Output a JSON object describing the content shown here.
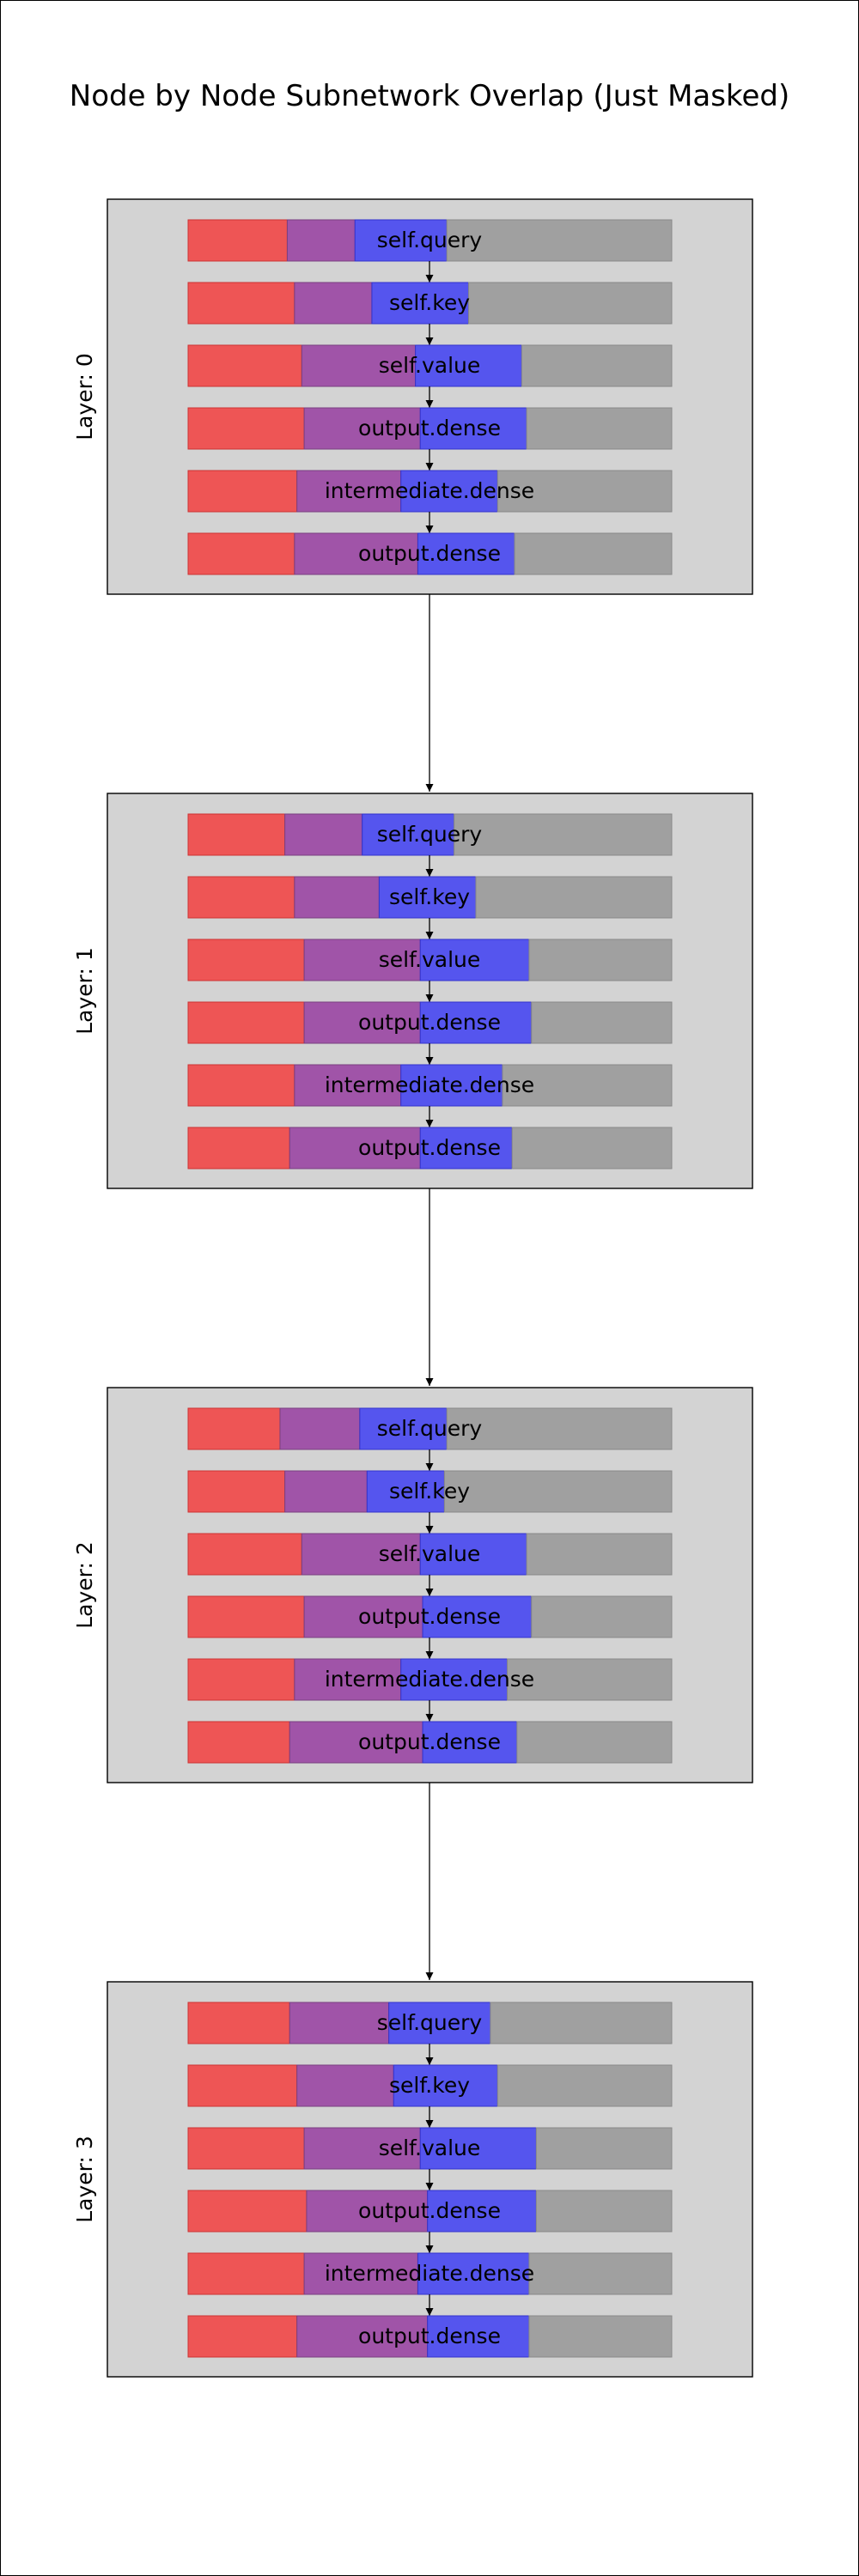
{
  "title": "Node by Node Subnetwork Overlap (Just Masked)",
  "colors": {
    "red_only": "#ee5555",
    "overlap": "#a054a8",
    "blue_only": "#5555ee",
    "unused": "#a0a0a0",
    "layer_background": "#d3d3d3"
  },
  "layers": [
    {
      "label": "Layer: 0",
      "modules": [
        {
          "name": "self.query",
          "segments": [
            0.205,
            0.14,
            0.19,
            0.465
          ]
        },
        {
          "name": "self.key",
          "segments": [
            0.22,
            0.16,
            0.2,
            0.42
          ]
        },
        {
          "name": "self.value",
          "segments": [
            0.235,
            0.235,
            0.22,
            0.31
          ]
        },
        {
          "name": "output.dense",
          "segments": [
            0.24,
            0.24,
            0.22,
            0.3
          ]
        },
        {
          "name": "intermediate.dense",
          "segments": [
            0.225,
            0.215,
            0.2,
            0.36
          ]
        },
        {
          "name": "output.dense",
          "segments": [
            0.22,
            0.255,
            0.2,
            0.325
          ]
        }
      ]
    },
    {
      "label": "Layer: 1",
      "modules": [
        {
          "name": "self.query",
          "segments": [
            0.2,
            0.16,
            0.19,
            0.45
          ]
        },
        {
          "name": "self.key",
          "segments": [
            0.22,
            0.175,
            0.2,
            0.405
          ]
        },
        {
          "name": "self.value",
          "segments": [
            0.24,
            0.24,
            0.225,
            0.295
          ]
        },
        {
          "name": "output.dense",
          "segments": [
            0.24,
            0.24,
            0.23,
            0.29
          ]
        },
        {
          "name": "intermediate.dense",
          "segments": [
            0.22,
            0.22,
            0.21,
            0.35
          ]
        },
        {
          "name": "output.dense",
          "segments": [
            0.21,
            0.27,
            0.19,
            0.33
          ]
        }
      ]
    },
    {
      "label": "Layer: 2",
      "modules": [
        {
          "name": "self.query",
          "segments": [
            0.19,
            0.165,
            0.18,
            0.465
          ]
        },
        {
          "name": "self.key",
          "segments": [
            0.2,
            0.17,
            0.16,
            0.47
          ]
        },
        {
          "name": "self.value",
          "segments": [
            0.235,
            0.245,
            0.22,
            0.3
          ]
        },
        {
          "name": "output.dense",
          "segments": [
            0.24,
            0.245,
            0.225,
            0.29
          ]
        },
        {
          "name": "intermediate.dense",
          "segments": [
            0.22,
            0.22,
            0.22,
            0.34
          ]
        },
        {
          "name": "output.dense",
          "segments": [
            0.21,
            0.275,
            0.195,
            0.32
          ]
        }
      ]
    },
    {
      "label": "Layer: 3",
      "modules": [
        {
          "name": "self.query",
          "segments": [
            0.21,
            0.205,
            0.21,
            0.375
          ]
        },
        {
          "name": "self.key",
          "segments": [
            0.225,
            0.2,
            0.215,
            0.36
          ]
        },
        {
          "name": "self.value",
          "segments": [
            0.24,
            0.24,
            0.24,
            0.28
          ]
        },
        {
          "name": "output.dense",
          "segments": [
            0.245,
            0.25,
            0.225,
            0.28
          ]
        },
        {
          "name": "intermediate.dense",
          "segments": [
            0.24,
            0.235,
            0.23,
            0.295
          ]
        },
        {
          "name": "output.dense",
          "segments": [
            0.225,
            0.27,
            0.21,
            0.295
          ]
        }
      ]
    }
  ]
}
